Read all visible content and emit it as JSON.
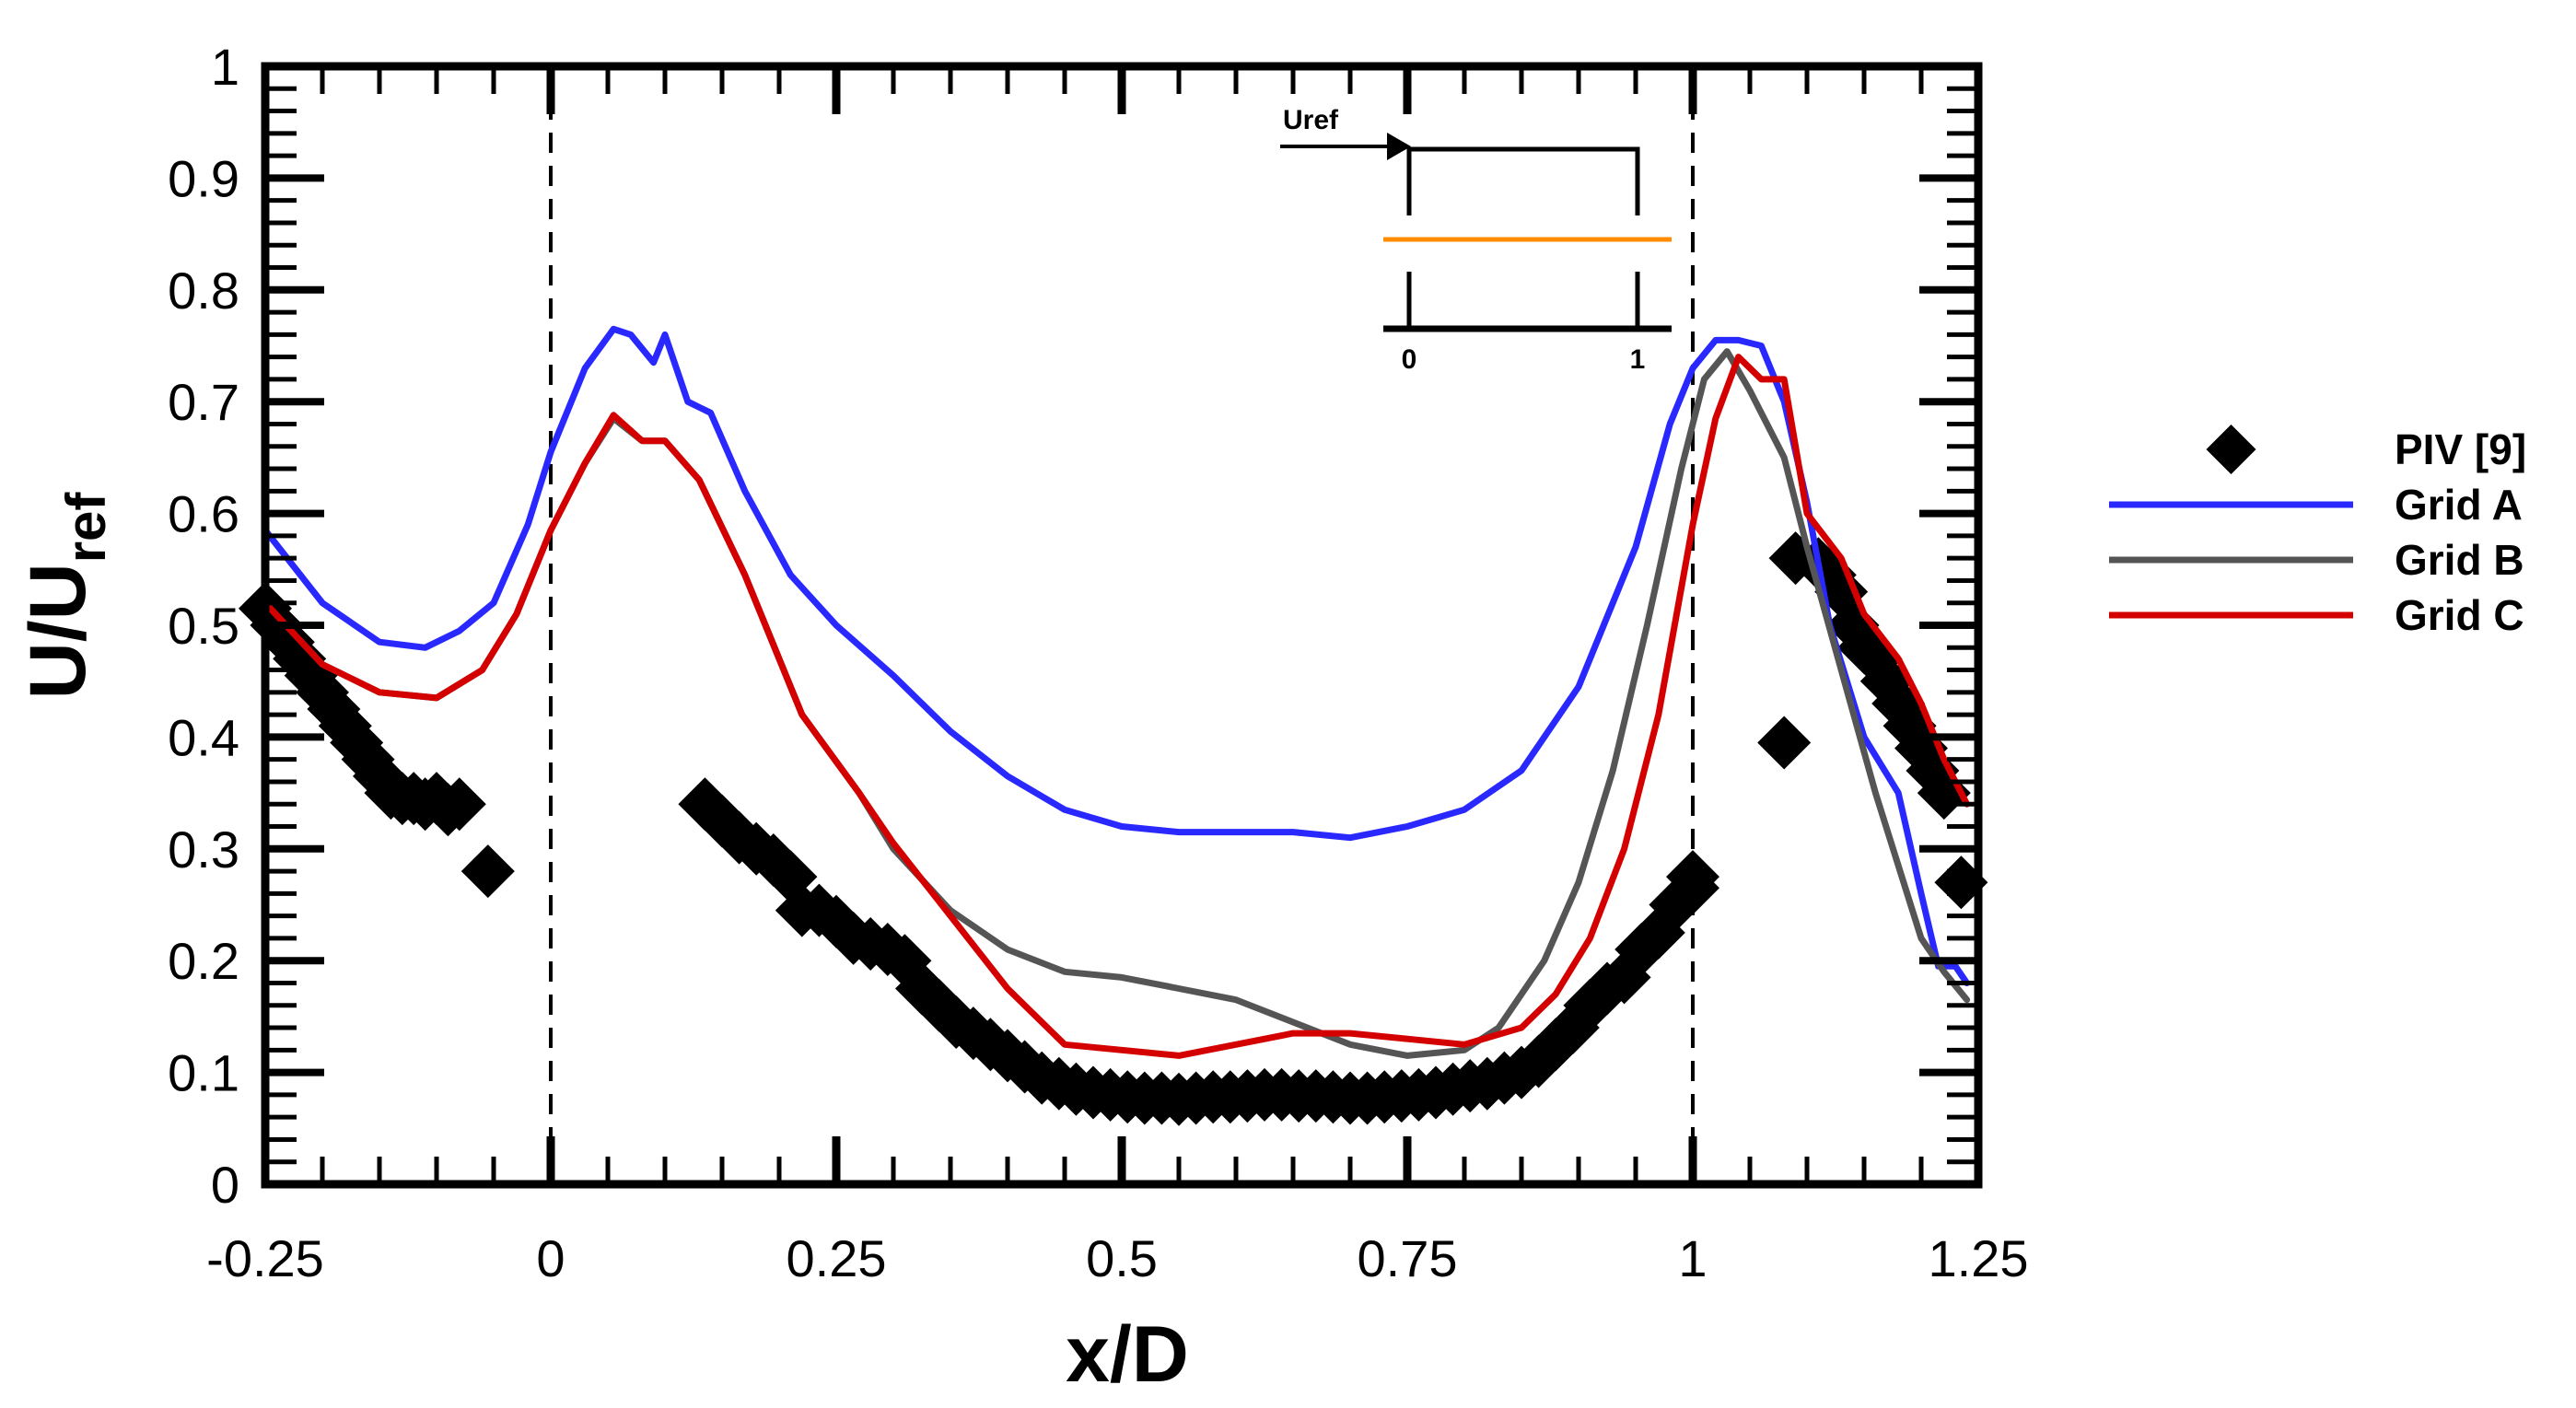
{
  "chart_data": {
    "type": "line",
    "title": "",
    "xlabel": "x/D",
    "ylabel_main": "U/U",
    "ylabel_sub": "ref",
    "xlim": [
      -0.25,
      1.25
    ],
    "ylim": [
      0,
      1
    ],
    "xticks": [
      -0.25,
      0,
      0.25,
      0.5,
      0.75,
      1,
      1.25
    ],
    "xtick_labels": [
      "-0.25",
      "0",
      "0.25",
      "0.5",
      "0.75",
      "1",
      "1.25"
    ],
    "yticks": [
      0,
      0.1,
      0.2,
      0.3,
      0.4,
      0.5,
      0.6,
      0.7,
      0.8,
      0.9,
      1
    ],
    "ytick_labels": [
      "0",
      "0.1",
      "0.2",
      "0.3",
      "0.4",
      "0.5",
      "0.6",
      "0.7",
      "0.8",
      "0.9",
      "1"
    ],
    "vlines": [
      0,
      1
    ],
    "legend_position": "right",
    "inset": {
      "arrow_label": "Uref",
      "tick_labels": [
        "0",
        "1"
      ],
      "line_color": "#ff8c00"
    },
    "series": [
      {
        "name": "PIV [9]",
        "kind": "marker",
        "color": "#000000",
        "points": [
          [
            -0.25,
            0.515
          ],
          [
            -0.24,
            0.5
          ],
          [
            -0.23,
            0.485
          ],
          [
            -0.22,
            0.47
          ],
          [
            -0.21,
            0.455
          ],
          [
            -0.2,
            0.44
          ],
          [
            -0.19,
            0.425
          ],
          [
            -0.18,
            0.41
          ],
          [
            -0.17,
            0.395
          ],
          [
            -0.16,
            0.38
          ],
          [
            -0.15,
            0.365
          ],
          [
            -0.14,
            0.35
          ],
          [
            -0.13,
            0.345
          ],
          [
            -0.12,
            0.345
          ],
          [
            -0.11,
            0.34
          ],
          [
            -0.1,
            0.345
          ],
          [
            -0.09,
            0.335
          ],
          [
            -0.08,
            0.34
          ],
          [
            -0.055,
            0.28
          ],
          [
            0.135,
            0.34
          ],
          [
            0.15,
            0.325
          ],
          [
            0.165,
            0.31
          ],
          [
            0.18,
            0.3
          ],
          [
            0.195,
            0.29
          ],
          [
            0.21,
            0.275
          ],
          [
            0.22,
            0.245
          ],
          [
            0.235,
            0.245
          ],
          [
            0.25,
            0.235
          ],
          [
            0.265,
            0.22
          ],
          [
            0.28,
            0.215
          ],
          [
            0.295,
            0.21
          ],
          [
            0.31,
            0.2
          ],
          [
            0.325,
            0.175
          ],
          [
            0.34,
            0.16
          ],
          [
            0.355,
            0.145
          ],
          [
            0.37,
            0.135
          ],
          [
            0.385,
            0.125
          ],
          [
            0.4,
            0.115
          ],
          [
            0.415,
            0.105
          ],
          [
            0.43,
            0.095
          ],
          [
            0.445,
            0.09
          ],
          [
            0.46,
            0.085
          ],
          [
            0.475,
            0.082
          ],
          [
            0.49,
            0.08
          ],
          [
            0.505,
            0.078
          ],
          [
            0.52,
            0.077
          ],
          [
            0.535,
            0.077
          ],
          [
            0.55,
            0.076
          ],
          [
            0.565,
            0.077
          ],
          [
            0.58,
            0.078
          ],
          [
            0.595,
            0.078
          ],
          [
            0.61,
            0.079
          ],
          [
            0.625,
            0.08
          ],
          [
            0.64,
            0.08
          ],
          [
            0.655,
            0.079
          ],
          [
            0.67,
            0.079
          ],
          [
            0.685,
            0.078
          ],
          [
            0.7,
            0.077
          ],
          [
            0.715,
            0.077
          ],
          [
            0.73,
            0.078
          ],
          [
            0.745,
            0.079
          ],
          [
            0.76,
            0.08
          ],
          [
            0.775,
            0.082
          ],
          [
            0.79,
            0.085
          ],
          [
            0.805,
            0.088
          ],
          [
            0.82,
            0.09
          ],
          [
            0.835,
            0.095
          ],
          [
            0.85,
            0.1
          ],
          [
            0.865,
            0.11
          ],
          [
            0.88,
            0.125
          ],
          [
            0.895,
            0.14
          ],
          [
            0.91,
            0.16
          ],
          [
            0.925,
            0.175
          ],
          [
            0.94,
            0.185
          ],
          [
            0.955,
            0.21
          ],
          [
            0.97,
            0.225
          ],
          [
            0.985,
            0.25
          ],
          [
            1.0,
            0.265
          ],
          [
            1.0,
            0.275
          ],
          [
            1.08,
            0.395
          ],
          [
            1.09,
            0.56
          ],
          [
            1.11,
            0.555
          ],
          [
            1.12,
            0.545
          ],
          [
            1.13,
            0.53
          ],
          [
            1.14,
            0.5
          ],
          [
            1.15,
            0.48
          ],
          [
            1.16,
            0.47
          ],
          [
            1.17,
            0.45
          ],
          [
            1.18,
            0.43
          ],
          [
            1.19,
            0.41
          ],
          [
            1.2,
            0.39
          ],
          [
            1.21,
            0.37
          ],
          [
            1.22,
            0.35
          ],
          [
            1.235,
            0.27
          ]
        ]
      },
      {
        "name": "Grid A",
        "kind": "line",
        "color": "#2828ff",
        "points": [
          [
            -0.25,
            0.585
          ],
          [
            -0.2,
            0.52
          ],
          [
            -0.15,
            0.485
          ],
          [
            -0.11,
            0.48
          ],
          [
            -0.08,
            0.495
          ],
          [
            -0.05,
            0.52
          ],
          [
            -0.02,
            0.59
          ],
          [
            0.0,
            0.655
          ],
          [
            0.03,
            0.73
          ],
          [
            0.055,
            0.765
          ],
          [
            0.07,
            0.76
          ],
          [
            0.09,
            0.735
          ],
          [
            0.1,
            0.76
          ],
          [
            0.12,
            0.7
          ],
          [
            0.14,
            0.69
          ],
          [
            0.17,
            0.62
          ],
          [
            0.21,
            0.545
          ],
          [
            0.25,
            0.5
          ],
          [
            0.3,
            0.455
          ],
          [
            0.35,
            0.405
          ],
          [
            0.4,
            0.365
          ],
          [
            0.45,
            0.335
          ],
          [
            0.5,
            0.32
          ],
          [
            0.55,
            0.315
          ],
          [
            0.6,
            0.315
          ],
          [
            0.65,
            0.315
          ],
          [
            0.7,
            0.31
          ],
          [
            0.75,
            0.32
          ],
          [
            0.8,
            0.335
          ],
          [
            0.85,
            0.37
          ],
          [
            0.9,
            0.445
          ],
          [
            0.95,
            0.57
          ],
          [
            0.98,
            0.68
          ],
          [
            1.0,
            0.73
          ],
          [
            1.02,
            0.755
          ],
          [
            1.04,
            0.755
          ],
          [
            1.06,
            0.75
          ],
          [
            1.08,
            0.7
          ],
          [
            1.1,
            0.61
          ],
          [
            1.12,
            0.5
          ],
          [
            1.15,
            0.4
          ],
          [
            1.18,
            0.35
          ],
          [
            1.2,
            0.26
          ],
          [
            1.215,
            0.195
          ],
          [
            1.23,
            0.195
          ],
          [
            1.24,
            0.18
          ]
        ]
      },
      {
        "name": "Grid B",
        "kind": "line",
        "color": "#555555",
        "points": [
          [
            -0.25,
            0.52
          ],
          [
            -0.2,
            0.465
          ],
          [
            -0.15,
            0.44
          ],
          [
            -0.1,
            0.435
          ],
          [
            -0.06,
            0.46
          ],
          [
            -0.03,
            0.51
          ],
          [
            0.0,
            0.585
          ],
          [
            0.03,
            0.645
          ],
          [
            0.055,
            0.685
          ],
          [
            0.08,
            0.665
          ],
          [
            0.1,
            0.665
          ],
          [
            0.13,
            0.63
          ],
          [
            0.17,
            0.545
          ],
          [
            0.22,
            0.42
          ],
          [
            0.27,
            0.35
          ],
          [
            0.3,
            0.3
          ],
          [
            0.35,
            0.245
          ],
          [
            0.4,
            0.21
          ],
          [
            0.45,
            0.19
          ],
          [
            0.5,
            0.185
          ],
          [
            0.55,
            0.175
          ],
          [
            0.6,
            0.165
          ],
          [
            0.65,
            0.145
          ],
          [
            0.7,
            0.125
          ],
          [
            0.75,
            0.115
          ],
          [
            0.8,
            0.12
          ],
          [
            0.83,
            0.14
          ],
          [
            0.87,
            0.2
          ],
          [
            0.9,
            0.27
          ],
          [
            0.93,
            0.37
          ],
          [
            0.96,
            0.5
          ],
          [
            0.99,
            0.64
          ],
          [
            1.01,
            0.72
          ],
          [
            1.03,
            0.745
          ],
          [
            1.05,
            0.71
          ],
          [
            1.08,
            0.65
          ],
          [
            1.1,
            0.57
          ],
          [
            1.13,
            0.46
          ],
          [
            1.16,
            0.35
          ],
          [
            1.2,
            0.22
          ],
          [
            1.22,
            0.19
          ],
          [
            1.24,
            0.165
          ]
        ]
      },
      {
        "name": "Grid C",
        "kind": "line",
        "color": "#d40000",
        "points": [
          [
            -0.25,
            0.52
          ],
          [
            -0.2,
            0.465
          ],
          [
            -0.15,
            0.44
          ],
          [
            -0.1,
            0.435
          ],
          [
            -0.06,
            0.46
          ],
          [
            -0.03,
            0.51
          ],
          [
            0.0,
            0.585
          ],
          [
            0.03,
            0.645
          ],
          [
            0.055,
            0.688
          ],
          [
            0.08,
            0.665
          ],
          [
            0.1,
            0.665
          ],
          [
            0.13,
            0.63
          ],
          [
            0.17,
            0.545
          ],
          [
            0.22,
            0.42
          ],
          [
            0.27,
            0.35
          ],
          [
            0.3,
            0.305
          ],
          [
            0.35,
            0.24
          ],
          [
            0.4,
            0.175
          ],
          [
            0.45,
            0.125
          ],
          [
            0.5,
            0.12
          ],
          [
            0.55,
            0.115
          ],
          [
            0.6,
            0.125
          ],
          [
            0.65,
            0.135
          ],
          [
            0.7,
            0.135
          ],
          [
            0.75,
            0.13
          ],
          [
            0.8,
            0.125
          ],
          [
            0.85,
            0.14
          ],
          [
            0.88,
            0.17
          ],
          [
            0.91,
            0.22
          ],
          [
            0.94,
            0.3
          ],
          [
            0.97,
            0.42
          ],
          [
            1.0,
            0.59
          ],
          [
            1.02,
            0.685
          ],
          [
            1.04,
            0.74
          ],
          [
            1.06,
            0.72
          ],
          [
            1.08,
            0.72
          ],
          [
            1.1,
            0.6
          ],
          [
            1.13,
            0.56
          ],
          [
            1.15,
            0.51
          ],
          [
            1.18,
            0.47
          ],
          [
            1.2,
            0.43
          ],
          [
            1.22,
            0.38
          ],
          [
            1.24,
            0.34
          ]
        ]
      }
    ]
  }
}
